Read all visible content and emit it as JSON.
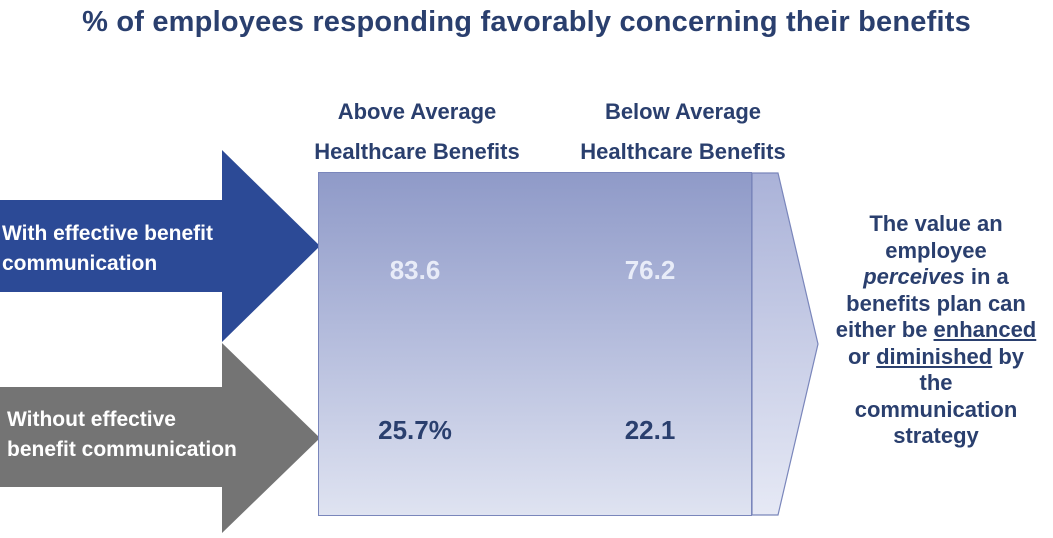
{
  "title": "% of employees responding favorably concerning their benefits",
  "columns": [
    {
      "line1": "Above Average",
      "line2": "Healthcare Benefits"
    },
    {
      "line1": "Below Average",
      "line2": "Healthcare Benefits"
    }
  ],
  "rows": [
    {
      "line1": "With effective benefit",
      "line2": "communication",
      "color": "#2c4a96",
      "values": [
        "83.6",
        "76.2"
      ]
    },
    {
      "line1": "Without effective",
      "line2": "benefit communication",
      "color": "#747474",
      "values": [
        "25.7%",
        "22.1"
      ]
    }
  ],
  "note": {
    "p1": "The value an",
    "p2": "employee",
    "p3": "perceives",
    "p4": " in a",
    "p5": "benefits plan can",
    "p6": "either be ",
    "p7": "enhanced",
    "p8": "or ",
    "p9": "diminished",
    "p10": " by",
    "p11": "the",
    "p12": "communication",
    "p13": "strategy"
  },
  "colors": {
    "box_top": "#8f9ac8",
    "box_bottom": "#dfe3f1",
    "fold": "#c3c9e4"
  }
}
